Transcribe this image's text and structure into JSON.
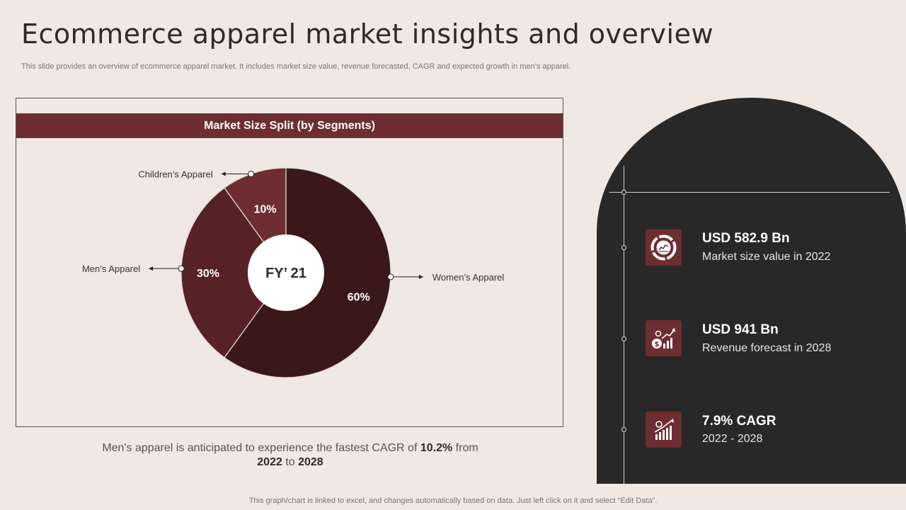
{
  "title": "Ecommerce apparel market insights and overview",
  "subtitle": "This slide provides an overview of ecommerce apparel market. It includes market size value, revenue forecasted, CAGR  and expected growth in men’s apparel.",
  "chart_data": {
    "type": "pie",
    "title": "Market Size Split (by Segments)",
    "center_label": "FY’ 21",
    "categories": [
      "Women’s Apparel",
      "Men’s Apparel",
      "Children’s Apparel"
    ],
    "values": [
      60,
      30,
      10
    ],
    "value_labels": [
      "60%",
      "30%",
      "10%"
    ],
    "colors": [
      "#3a1719",
      "#572226",
      "#6e2d31"
    ]
  },
  "caption": {
    "part1": "Men's apparel is anticipated to experience the fastest CAGR of ",
    "cagr": "10.2%",
    "part2": " from",
    "year_start": "2022",
    "to": " to ",
    "year_end": "2028"
  },
  "stats": [
    {
      "value": "USD 582.9 Bn",
      "label": "Market size value  in 2022",
      "icon": "pie-chart-icon"
    },
    {
      "value": "USD 941 Bn",
      "label": "Revenue forecast in 2028",
      "icon": "money-growth-icon"
    },
    {
      "value": "7.9% CAGR",
      "label": "2022 - 2028",
      "icon": "bar-growth-icon"
    }
  ],
  "footer": "This graph/chart is linked to excel,  and changes automatically based on data. Just left click on it and select “Edit Data”."
}
